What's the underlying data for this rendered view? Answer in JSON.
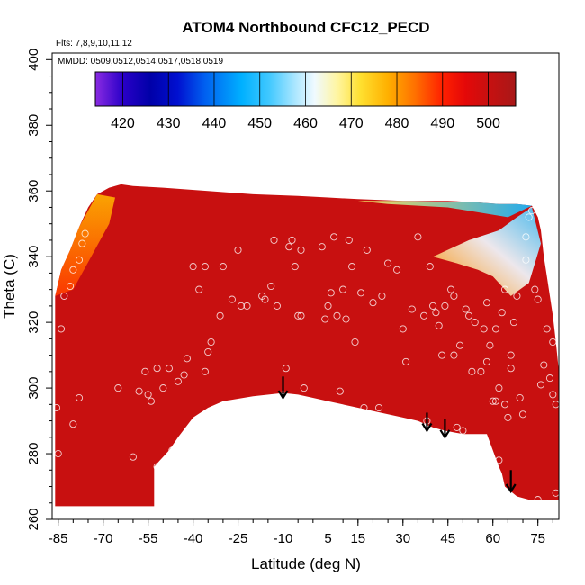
{
  "chart_data": {
    "type": "heatmap",
    "title": "ATOM4 Northbound CFC12_PECD",
    "annotations": [
      "Flts: 7,8,9,10,11,12",
      "MMDD: 0509,0512,0514,0517,0518,0519"
    ],
    "xlabel": "Latitude (deg N)",
    "ylabel": "Theta (C)",
    "xlim": [
      -87,
      82
    ],
    "ylim": [
      260,
      402
    ],
    "x_ticks": [
      -85,
      -70,
      -55,
      -40,
      -25,
      -10,
      5,
      15,
      30,
      45,
      60,
      75
    ],
    "y_ticks": [
      260,
      280,
      300,
      320,
      340,
      360,
      380,
      400
    ],
    "colorbar": {
      "range": [
        414,
        506
      ],
      "ticks": [
        420,
        430,
        440,
        450,
        460,
        470,
        480,
        490,
        500
      ],
      "colors": [
        {
          "v": 414,
          "c": "#8a2be2"
        },
        {
          "v": 420,
          "c": "#2a00c8"
        },
        {
          "v": 426,
          "c": "#0000a8"
        },
        {
          "v": 432,
          "c": "#0010d0"
        },
        {
          "v": 438,
          "c": "#0060f0"
        },
        {
          "v": 446,
          "c": "#00b0ff"
        },
        {
          "v": 452,
          "c": "#40c8ff"
        },
        {
          "v": 458,
          "c": "#b0e8ff"
        },
        {
          "v": 462,
          "c": "#f0faff"
        },
        {
          "v": 467,
          "c": "#fff5a0"
        },
        {
          "v": 472,
          "c": "#ffe030"
        },
        {
          "v": 478,
          "c": "#ffb000"
        },
        {
          "v": 484,
          "c": "#ff7000"
        },
        {
          "v": 490,
          "c": "#ff2000"
        },
        {
          "v": 495,
          "c": "#e40808"
        },
        {
          "v": 500,
          "c": "#c81010"
        },
        {
          "v": 506,
          "c": "#a81818"
        }
      ]
    },
    "field_value": 500,
    "contour_region": {
      "upper_boundary": [
        [
          -86,
          328
        ],
        [
          -84,
          336
        ],
        [
          -81,
          342
        ],
        [
          -78,
          349
        ],
        [
          -75,
          355
        ],
        [
          -72,
          359
        ],
        [
          -68,
          361
        ],
        [
          -64,
          362
        ],
        [
          -60,
          361.5
        ],
        [
          -50,
          361
        ],
        [
          -35,
          360
        ],
        [
          -20,
          359
        ],
        [
          -5,
          358.5
        ],
        [
          5,
          358
        ],
        [
          15,
          357.5
        ],
        [
          30,
          357
        ],
        [
          45,
          357
        ],
        [
          55,
          356.5
        ],
        [
          62,
          356
        ],
        [
          68,
          356
        ],
        [
          73,
          355.5
        ],
        [
          75,
          352
        ],
        [
          76,
          348
        ],
        [
          77,
          340
        ],
        [
          78,
          334
        ],
        [
          79,
          328
        ],
        [
          80,
          322
        ],
        [
          81,
          314
        ],
        [
          82,
          305
        ]
      ],
      "lower_boundary": [
        [
          82,
          266
        ],
        [
          76,
          266
        ],
        [
          72,
          266
        ],
        [
          68,
          267
        ],
        [
          64,
          270
        ],
        [
          63,
          274
        ],
        [
          62,
          276
        ],
        [
          60,
          281
        ],
        [
          58,
          286
        ],
        [
          55,
          286
        ],
        [
          50,
          286
        ],
        [
          44,
          287
        ],
        [
          40,
          288
        ],
        [
          35,
          290
        ],
        [
          30,
          291
        ],
        [
          20,
          293
        ],
        [
          15,
          294
        ],
        [
          5,
          296
        ],
        [
          0,
          297
        ],
        [
          -5,
          298
        ],
        [
          -10,
          298.5
        ],
        [
          -20,
          297.5
        ],
        [
          -30,
          296
        ],
        [
          -35,
          294
        ],
        [
          -40,
          291
        ],
        [
          -45,
          285
        ],
        [
          -48,
          281
        ],
        [
          -51,
          278
        ],
        [
          -53,
          276
        ],
        [
          -53,
          264
        ],
        [
          -86,
          264
        ]
      ]
    },
    "low_value_patches": [
      {
        "label": "upper-right bright region",
        "value_range": [
          455,
          480
        ],
        "points": [
          [
            40,
            340
          ],
          [
            52,
            345
          ],
          [
            62,
            348
          ],
          [
            68,
            352
          ],
          [
            73,
            355
          ],
          [
            76,
            344
          ],
          [
            72,
            332
          ],
          [
            66,
            328
          ],
          [
            60,
            334
          ],
          [
            55,
            336
          ],
          [
            48,
            338
          ]
        ]
      },
      {
        "label": "top-edge blue strip",
        "value_range": [
          445,
          470
        ],
        "points": [
          [
            15,
            357
          ],
          [
            30,
            357
          ],
          [
            55,
            356.5
          ],
          [
            70,
            356
          ],
          [
            73,
            355.5
          ],
          [
            65,
            352
          ],
          [
            45,
            355
          ],
          [
            25,
            356
          ]
        ]
      },
      {
        "label": "upper-left orange band",
        "value_range": [
          478,
          492
        ],
        "points": [
          [
            -86,
            328
          ],
          [
            -84,
            336
          ],
          [
            -78,
            349
          ],
          [
            -72,
            359
          ],
          [
            -66,
            358
          ],
          [
            -68,
            350
          ],
          [
            -74,
            340
          ],
          [
            -80,
            330
          ]
        ]
      }
    ],
    "observations": [
      [
        -85.5,
        294
      ],
      [
        -85,
        280
      ],
      [
        -84,
        318
      ],
      [
        -83,
        328
      ],
      [
        -81,
        331
      ],
      [
        -80,
        336
      ],
      [
        -78,
        339
      ],
      [
        -77,
        344
      ],
      [
        -76,
        347
      ],
      [
        -80,
        289
      ],
      [
        -78,
        297
      ],
      [
        -65,
        300
      ],
      [
        -60,
        279
      ],
      [
        -58,
        299
      ],
      [
        -56,
        305
      ],
      [
        -55,
        298
      ],
      [
        -54,
        296
      ],
      [
        -52,
        306
      ],
      [
        -52,
        276
      ],
      [
        -50,
        300
      ],
      [
        -48,
        306
      ],
      [
        -47,
        281
      ],
      [
        -45,
        302
      ],
      [
        -43,
        304
      ],
      [
        -42,
        309
      ],
      [
        -40,
        289
      ],
      [
        -40,
        337
      ],
      [
        -38,
        330
      ],
      [
        -36,
        337
      ],
      [
        -36,
        305
      ],
      [
        -35,
        311
      ],
      [
        -34,
        314
      ],
      [
        -34,
        293
      ],
      [
        -31,
        322
      ],
      [
        -30,
        337
      ],
      [
        -27,
        327
      ],
      [
        -25,
        342
      ],
      [
        -24,
        325
      ],
      [
        -22,
        325
      ],
      [
        -20,
        296
      ],
      [
        -19,
        296
      ],
      [
        -17,
        328
      ],
      [
        -16,
        327
      ],
      [
        -14,
        331
      ],
      [
        -13,
        345
      ],
      [
        -12,
        325
      ],
      [
        -10,
        298
      ],
      [
        -9,
        306
      ],
      [
        -8,
        343
      ],
      [
        -7,
        345
      ],
      [
        -6,
        337
      ],
      [
        -5,
        322
      ],
      [
        -4,
        322
      ],
      [
        -4,
        342
      ],
      [
        -3,
        300
      ],
      [
        3,
        343
      ],
      [
        4,
        321
      ],
      [
        5,
        325
      ],
      [
        6,
        329
      ],
      [
        7,
        346
      ],
      [
        8,
        322
      ],
      [
        9,
        299
      ],
      [
        10,
        330
      ],
      [
        11,
        321
      ],
      [
        12,
        345
      ],
      [
        13,
        337
      ],
      [
        14,
        314
      ],
      [
        16,
        329
      ],
      [
        17,
        294
      ],
      [
        18,
        342
      ],
      [
        20,
        326
      ],
      [
        22,
        294
      ],
      [
        23,
        328
      ],
      [
        25,
        338
      ],
      [
        28,
        336
      ],
      [
        30,
        318
      ],
      [
        31,
        308
      ],
      [
        33,
        324
      ],
      [
        35,
        346
      ],
      [
        37,
        322
      ],
      [
        38,
        290
      ],
      [
        39,
        337
      ],
      [
        40,
        325
      ],
      [
        41,
        323
      ],
      [
        42,
        319
      ],
      [
        43,
        310
      ],
      [
        44,
        325
      ],
      [
        45,
        285
      ],
      [
        46,
        330
      ],
      [
        47,
        328
      ],
      [
        47,
        310
      ],
      [
        48,
        288
      ],
      [
        49,
        313
      ],
      [
        50,
        287
      ],
      [
        51,
        324
      ],
      [
        52,
        322
      ],
      [
        53,
        305
      ],
      [
        54,
        320
      ],
      [
        55,
        282
      ],
      [
        56,
        305
      ],
      [
        57,
        318
      ],
      [
        58,
        326
      ],
      [
        58,
        308
      ],
      [
        59,
        313
      ],
      [
        60,
        296
      ],
      [
        60,
        275
      ],
      [
        61,
        296
      ],
      [
        61,
        318
      ],
      [
        62,
        300
      ],
      [
        62,
        278
      ],
      [
        63,
        323
      ],
      [
        64,
        330
      ],
      [
        64,
        295
      ],
      [
        65,
        291
      ],
      [
        66,
        310
      ],
      [
        66,
        306
      ],
      [
        67,
        320
      ],
      [
        68,
        328
      ],
      [
        69,
        297
      ],
      [
        70,
        292
      ],
      [
        71,
        346
      ],
      [
        71,
        339
      ],
      [
        72,
        352
      ],
      [
        73,
        354
      ],
      [
        74,
        330
      ],
      [
        75,
        327
      ],
      [
        75,
        266
      ],
      [
        76,
        301
      ],
      [
        77,
        307
      ],
      [
        78,
        318
      ],
      [
        79,
        303
      ],
      [
        80,
        298
      ],
      [
        80,
        314
      ],
      [
        81,
        268
      ],
      [
        81,
        295
      ]
    ],
    "arrows": [
      {
        "x": -10,
        "y_top": 303.5,
        "y_bottom": 297
      },
      {
        "x": 38,
        "y_top": 292.5,
        "y_bottom": 287
      },
      {
        "x": 44,
        "y_top": 290.5,
        "y_bottom": 285
      },
      {
        "x": 66,
        "y_top": 275,
        "y_bottom": 268.5
      }
    ]
  }
}
